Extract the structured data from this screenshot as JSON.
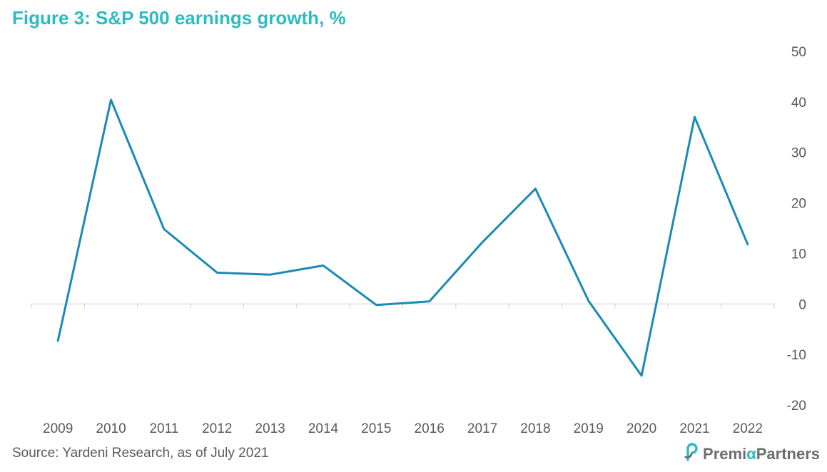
{
  "title": "Figure 3: S&P 500 earnings growth, %",
  "source": "Source: Yardeni Research, as of July 2021",
  "brand": {
    "name_part1": "Premi",
    "name_accent": "α",
    "name_part2": "Partners",
    "icon": "premia-logo-icon",
    "accent_color": "#2bbcc1",
    "text_color": "#6d6e71"
  },
  "chart_data": {
    "type": "line",
    "title": "Figure 3: S&P 500 earnings growth, %",
    "xlabel": "",
    "ylabel": "",
    "categories": [
      "2009",
      "2010",
      "2011",
      "2012",
      "2013",
      "2014",
      "2015",
      "2016",
      "2017",
      "2018",
      "2019",
      "2020",
      "2021",
      "2022"
    ],
    "series": [
      {
        "values": [
          -7.3,
          40.4,
          14.8,
          6.2,
          5.8,
          7.6,
          -0.2,
          0.5,
          12.2,
          22.8,
          0.6,
          -14.2,
          37.0,
          11.8
        ]
      }
    ],
    "ylim": [
      -20,
      50
    ],
    "yticks": [
      50,
      40,
      30,
      20,
      10,
      0,
      -10,
      -20
    ],
    "yaxis_position": "right",
    "grid": false,
    "line_color": "#1b8ab7"
  }
}
